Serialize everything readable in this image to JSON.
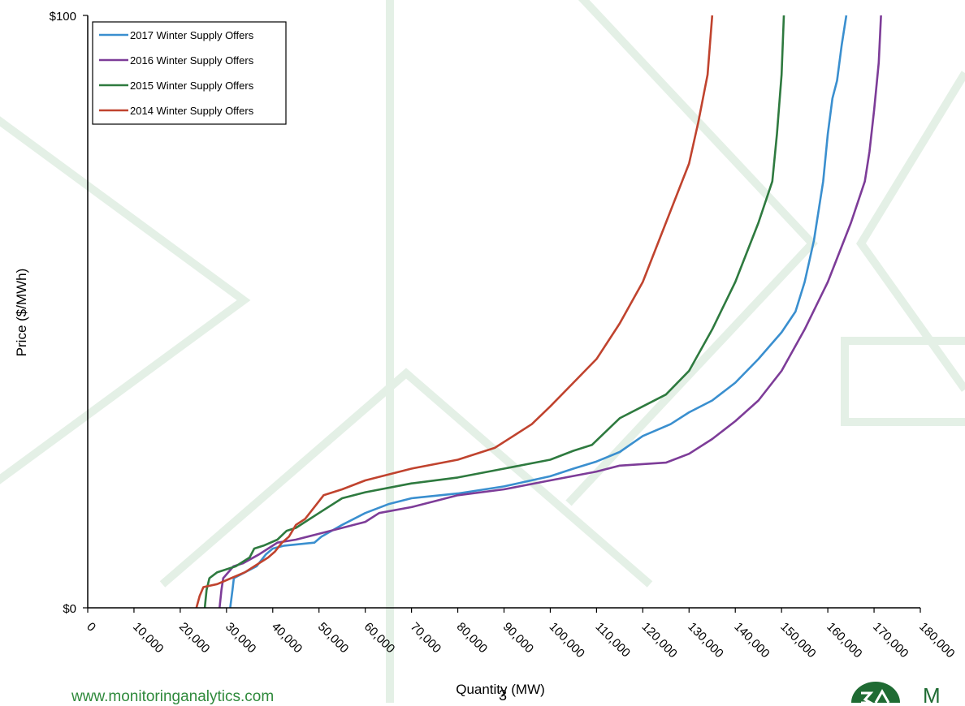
{
  "colors": {
    "series_2017": "#3a8fcf",
    "series_2016": "#7d3c98",
    "series_2015": "#2e7a3f",
    "series_2014": "#c0432e",
    "footer_green": "#2f8a3c",
    "decor_line": "#e4f0e6"
  },
  "footer": {
    "url": "www.monitoringanalytics.com",
    "page_number": "3",
    "logo_text": "M",
    "logo_icon": "monitoring-analytics-logo"
  },
  "chart_data": {
    "type": "line",
    "title": "",
    "xlabel": "Quantity (MW)",
    "ylabel": "Price ($/MWh)",
    "xlim": [
      0,
      180000
    ],
    "ylim": [
      0,
      100
    ],
    "x_ticks": [
      "0",
      "10,000",
      "20,000",
      "30,000",
      "40,000",
      "50,000",
      "60,000",
      "70,000",
      "80,000",
      "90,000",
      "100,000",
      "110,000",
      "120,000",
      "130,000",
      "140,000",
      "150,000",
      "160,000",
      "170,000",
      "180,000"
    ],
    "y_ticks": [
      "$0",
      "$100"
    ],
    "grid": false,
    "legend_position": "top-left",
    "series": [
      {
        "name": "2017 Winter Supply Offers",
        "color": "#3a8fcf",
        "points": [
          [
            30800,
            0
          ],
          [
            31300,
            3
          ],
          [
            31600,
            5
          ],
          [
            34000,
            6
          ],
          [
            36500,
            7
          ],
          [
            38500,
            9
          ],
          [
            40000,
            10
          ],
          [
            42500,
            10.5
          ],
          [
            49000,
            11
          ],
          [
            50500,
            12
          ],
          [
            55000,
            14
          ],
          [
            60000,
            16
          ],
          [
            65000,
            17.5
          ],
          [
            70000,
            18.5
          ],
          [
            80000,
            19.3
          ],
          [
            90000,
            20.5
          ],
          [
            100000,
            22.2
          ],
          [
            105000,
            23.5
          ],
          [
            110000,
            24.7
          ],
          [
            115000,
            26.3
          ],
          [
            120000,
            29
          ],
          [
            126000,
            31
          ],
          [
            130000,
            33
          ],
          [
            135000,
            35
          ],
          [
            140000,
            38
          ],
          [
            145000,
            42
          ],
          [
            150000,
            46.5
          ],
          [
            153000,
            50
          ],
          [
            155000,
            55
          ],
          [
            157000,
            62
          ],
          [
            158000,
            67
          ],
          [
            159000,
            72
          ],
          [
            160000,
            80
          ],
          [
            161000,
            86
          ],
          [
            162000,
            89
          ],
          [
            163000,
            95
          ],
          [
            164000,
            100
          ]
        ]
      },
      {
        "name": "2016 Winter Supply Offers",
        "color": "#7d3c98",
        "points": [
          [
            28500,
            0
          ],
          [
            28900,
            3
          ],
          [
            29300,
            5
          ],
          [
            31500,
            7
          ],
          [
            33500,
            7.5
          ],
          [
            37000,
            9
          ],
          [
            39000,
            10
          ],
          [
            41000,
            11
          ],
          [
            45000,
            11.5
          ],
          [
            50000,
            12.5
          ],
          [
            55000,
            13.5
          ],
          [
            60000,
            14.5
          ],
          [
            63000,
            16
          ],
          [
            70000,
            17
          ],
          [
            75000,
            18
          ],
          [
            80000,
            19
          ],
          [
            90000,
            20
          ],
          [
            100000,
            21.5
          ],
          [
            110000,
            23
          ],
          [
            115000,
            24
          ],
          [
            125000,
            24.5
          ],
          [
            130000,
            26
          ],
          [
            135000,
            28.5
          ],
          [
            140000,
            31.5
          ],
          [
            145000,
            35
          ],
          [
            150000,
            40
          ],
          [
            155000,
            47
          ],
          [
            160000,
            55
          ],
          [
            165000,
            65
          ],
          [
            168000,
            72
          ],
          [
            169000,
            77
          ],
          [
            170000,
            84
          ],
          [
            171000,
            92
          ],
          [
            171500,
            100
          ]
        ]
      },
      {
        "name": "2015 Winter Supply Offers",
        "color": "#2e7a3f",
        "points": [
          [
            25300,
            0
          ],
          [
            25700,
            3
          ],
          [
            26300,
            5
          ],
          [
            28000,
            6
          ],
          [
            32000,
            7
          ],
          [
            35000,
            8.5
          ],
          [
            36000,
            10
          ],
          [
            38000,
            10.5
          ],
          [
            41000,
            11.5
          ],
          [
            43000,
            13
          ],
          [
            45000,
            13.5
          ],
          [
            48000,
            15
          ],
          [
            50000,
            16
          ],
          [
            55000,
            18.5
          ],
          [
            60000,
            19.5
          ],
          [
            70000,
            21
          ],
          [
            80000,
            22
          ],
          [
            90000,
            23.5
          ],
          [
            100000,
            25
          ],
          [
            105000,
            26.5
          ],
          [
            109000,
            27.5
          ],
          [
            111000,
            29
          ],
          [
            115000,
            32
          ],
          [
            120000,
            34
          ],
          [
            125000,
            36
          ],
          [
            130000,
            40
          ],
          [
            135000,
            47
          ],
          [
            140000,
            55
          ],
          [
            145000,
            65
          ],
          [
            148000,
            72
          ],
          [
            149000,
            80
          ],
          [
            150000,
            90
          ],
          [
            150500,
            100
          ]
        ]
      },
      {
        "name": "2014 Winter Supply Offers",
        "color": "#c0432e",
        "points": [
          [
            23500,
            0
          ],
          [
            24200,
            2
          ],
          [
            25000,
            3.5
          ],
          [
            28000,
            4
          ],
          [
            31000,
            5
          ],
          [
            34000,
            6
          ],
          [
            36000,
            7
          ],
          [
            39000,
            8.5
          ],
          [
            40500,
            9.5
          ],
          [
            42000,
            11
          ],
          [
            43500,
            12
          ],
          [
            45000,
            14
          ],
          [
            47000,
            15
          ],
          [
            48000,
            16
          ],
          [
            51000,
            19
          ],
          [
            55000,
            20
          ],
          [
            60000,
            21.5
          ],
          [
            70000,
            23.5
          ],
          [
            80000,
            25
          ],
          [
            88000,
            27
          ],
          [
            92000,
            29
          ],
          [
            96000,
            31
          ],
          [
            100000,
            34
          ],
          [
            105000,
            38
          ],
          [
            110000,
            42
          ],
          [
            115000,
            48
          ],
          [
            120000,
            55
          ],
          [
            125000,
            65
          ],
          [
            130000,
            75
          ],
          [
            132000,
            82
          ],
          [
            134000,
            90
          ],
          [
            135000,
            100
          ]
        ]
      }
    ]
  }
}
